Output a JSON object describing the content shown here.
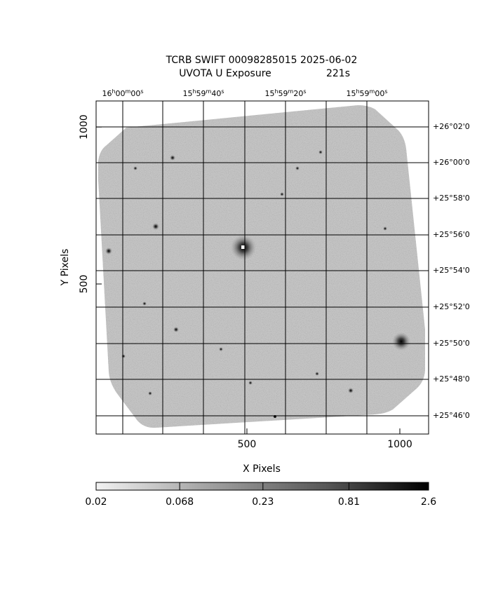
{
  "chart_data": {
    "type": "image",
    "title": "TCRB SWIFT 00098285015 2025-06-02",
    "subtitle": "UVOTA U Exposure",
    "exposure": "221s",
    "x_label": "X Pixels",
    "y_label": "Y Pixels",
    "xlim": [
      7,
      1094
    ],
    "ylim": [
      22,
      1083
    ],
    "xticks": [
      500,
      1000
    ],
    "yticks": [
      500,
      1000
    ],
    "top_labels": [
      "16h00m00s",
      "15h59m40s",
      "15h59m20s",
      "15h59m00s"
    ],
    "right_labels": [
      "+26°02'0",
      "+26°00'0",
      "+25°58'0",
      "+25°56'0",
      "+25°54'0",
      "+25°52'0",
      "+25°50'0",
      "+25°48'0",
      "+25°46'0"
    ],
    "colorbar": {
      "lim": [
        0.02,
        2.6
      ],
      "ticks": [
        0.02,
        0.068,
        0.23,
        0.81,
        2.6
      ],
      "log": true
    }
  }
}
